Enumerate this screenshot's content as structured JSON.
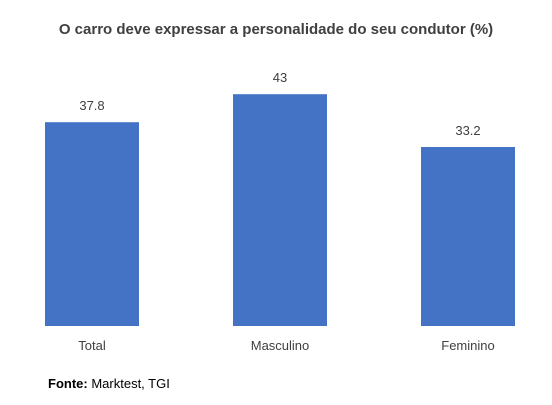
{
  "chart_data": {
    "type": "bar",
    "title": "O carro deve expressar a personalidade do seu condutor (%)",
    "categories": [
      "Total",
      "Masculino",
      "Feminino"
    ],
    "values": [
      37.8,
      43,
      33.2
    ],
    "value_labels": [
      "37.8",
      "43",
      "33.2"
    ],
    "xlabel": "",
    "ylabel": "",
    "ylim": [
      0,
      46
    ],
    "grid": false,
    "legend": "none",
    "bar_color": "#4472C4"
  },
  "source": {
    "label": "Fonte:",
    "text": "Marktest, TGI"
  }
}
